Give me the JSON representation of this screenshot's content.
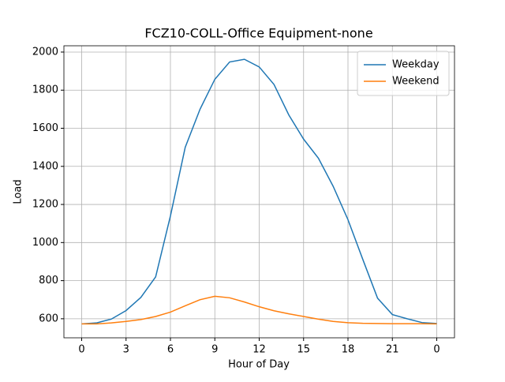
{
  "chart_data": {
    "type": "line",
    "title": "FCZ10-COLL-Office Equipment-none",
    "x_label": "Hour of Day",
    "y_label": "Load",
    "x": [
      0,
      1,
      2,
      3,
      4,
      5,
      6,
      7,
      8,
      9,
      10,
      11,
      12,
      13,
      14,
      15,
      16,
      17,
      18,
      19,
      20,
      21,
      22,
      23,
      24
    ],
    "series": [
      {
        "name": "Weekday",
        "color": "#1f77b4",
        "values": [
          573,
          578,
          598,
          643,
          712,
          820,
          1140,
          1500,
          1700,
          1857,
          1948,
          1962,
          1922,
          1830,
          1670,
          1543,
          1443,
          1295,
          1120,
          912,
          708,
          622,
          600,
          580,
          575
        ]
      },
      {
        "name": "Weekend",
        "color": "#ff7f0e",
        "values": [
          573,
          573,
          578,
          586,
          596,
          612,
          635,
          668,
          700,
          718,
          710,
          688,
          663,
          642,
          626,
          612,
          598,
          586,
          579,
          576,
          575,
          574,
          574,
          574,
          573
        ]
      }
    ],
    "xlim": [
      -1.2,
      25.2
    ],
    "xticks": [
      0,
      3,
      6,
      9,
      12,
      15,
      18,
      21,
      {
        "value": 24,
        "label": "0"
      }
    ],
    "ylim": [
      500,
      2033
    ],
    "yticks": [
      600,
      800,
      1000,
      1200,
      1400,
      1600,
      1800,
      2000
    ],
    "grid": true,
    "legend": "upper right"
  }
}
